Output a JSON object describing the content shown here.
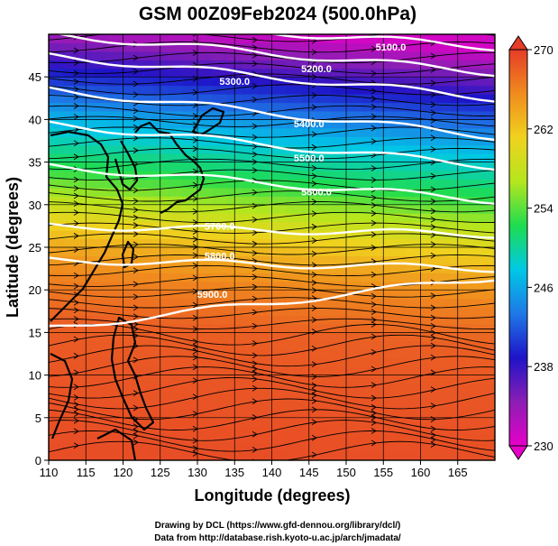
{
  "chart_data": {
    "type": "heatmap",
    "title": "GSM 00Z09Feb2024 (500.0hPa)",
    "xlabel": "Longitude (degrees)",
    "ylabel": "Latitude  (degrees)",
    "xlim": [
      110,
      170
    ],
    "ylim": [
      0,
      50
    ],
    "x_ticks": [
      "110",
      "115",
      "120",
      "125",
      "130",
      "135",
      "140",
      "145",
      "150",
      "155",
      "160",
      "165"
    ],
    "y_ticks": [
      "0",
      "5",
      "10",
      "15",
      "20",
      "25",
      "30",
      "35",
      "40",
      "45"
    ],
    "grid": true,
    "colorbar": {
      "range": [
        230,
        270
      ],
      "ticks": [
        "230",
        "238",
        "246",
        "254",
        "262",
        "270"
      ],
      "colors": [
        "#e600c8",
        "#8c1eb4",
        "#1e14c8",
        "#1e78e6",
        "#00c8e6",
        "#1edc50",
        "#b4e61e",
        "#f0d21e",
        "#f08c1e",
        "#e63c28"
      ]
    },
    "temperature_profile": [
      {
        "lat": 0,
        "value": 269
      },
      {
        "lat": 10,
        "value": 268.5
      },
      {
        "lat": 15,
        "value": 268
      },
      {
        "lat": 20,
        "value": 266
      },
      {
        "lat": 23,
        "value": 264
      },
      {
        "lat": 26,
        "value": 261
      },
      {
        "lat": 29,
        "value": 257
      },
      {
        "lat": 32,
        "value": 253
      },
      {
        "lat": 35,
        "value": 250
      },
      {
        "lat": 38,
        "value": 247
      },
      {
        "lat": 41,
        "value": 243
      },
      {
        "lat": 44,
        "value": 239
      },
      {
        "lat": 47,
        "value": 235
      },
      {
        "lat": 50,
        "value": 231
      }
    ],
    "contours": [
      {
        "label": "5100.0",
        "lat_west": 52,
        "lat_east": 48.5,
        "label_lon": 156,
        "label_lat": 48.5
      },
      {
        "label": "5200.0",
        "lat_west": 50,
        "lat_east": 45.5,
        "label_lon": 146,
        "label_lat": 46
      },
      {
        "label": "5300.0",
        "lat_west": 47.5,
        "lat_east": 42.5,
        "label_lon": 135,
        "label_lat": 44.5
      },
      {
        "label": "5400.0",
        "lat_west": 43.5,
        "lat_east": 38,
        "label_lon": 145,
        "label_lat": 39.5
      },
      {
        "label": "5500.0",
        "lat_west": 39.5,
        "lat_east": 34.5,
        "label_lon": 145,
        "label_lat": 35.5
      },
      {
        "label": "5600.0",
        "lat_west": 34.5,
        "lat_east": 30.5,
        "label_lon": 146,
        "label_lat": 31.5
      },
      {
        "label": "5700.0",
        "lat_west": 27.5,
        "lat_east": 26.5,
        "label_lon": 133,
        "label_lat": 27.5
      },
      {
        "label": "5800.0",
        "lat_west": 23.5,
        "lat_east": 22.5,
        "label_lon": 133,
        "label_lat": 24
      },
      {
        "label": "5900.0",
        "lat_west": 15.5,
        "lat_east": 21.5,
        "label_lon": 132,
        "label_lat": 19.5
      }
    ],
    "credits": [
      "Drawing by DCL (https://www.gfd-dennou.org/library/dcl/)",
      "Data from http://database.rish.kyoto-u.ac.jp/arch/jmadata/"
    ]
  }
}
